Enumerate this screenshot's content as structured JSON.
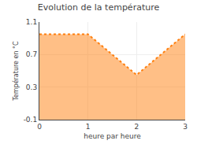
{
  "chart_data": {
    "type": "area",
    "title": "Evolution de la température",
    "xlabel": "heure par heure",
    "ylabel": "Température en °C",
    "x": [
      0,
      1,
      2,
      3
    ],
    "values": [
      0.95,
      0.95,
      0.45,
      0.95
    ],
    "xlim": [
      0,
      3
    ],
    "ylim": [
      -0.1,
      1.1
    ],
    "xticks": [
      0,
      1,
      2,
      3
    ],
    "yticks": [
      -0.1,
      0.3,
      0.7,
      1.1
    ],
    "line_style": "dotted",
    "grid": true
  }
}
